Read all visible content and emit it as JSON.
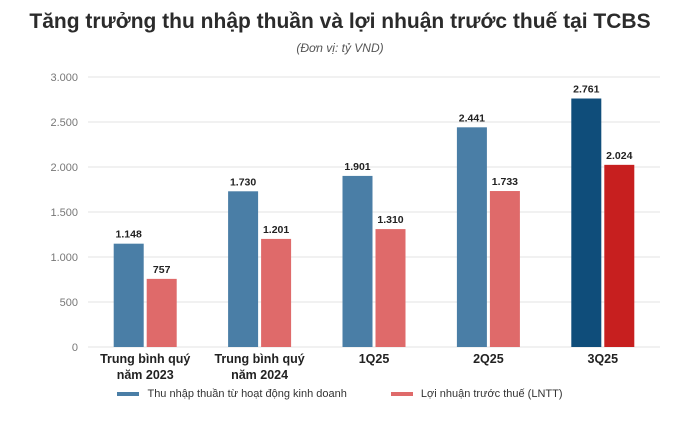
{
  "title": "Tăng trưởng thu nhập thuần và lợi nhuận trước thuế tại TCBS",
  "subtitle": "(Đơn vị: tỷ VND)",
  "colors": {
    "series1": "#4a7ea6",
    "series2": "#df6a6a",
    "series1_highlight": "#0f4d7a",
    "series2_highlight": "#c71f1f",
    "grid": "#e3e3e3",
    "axis_text": "#777777"
  },
  "chart_data": {
    "type": "bar",
    "categories": [
      [
        "Trung bình quý",
        "năm 2023"
      ],
      [
        "Trung bình quý",
        "năm 2024"
      ],
      [
        "1Q25"
      ],
      [
        "2Q25"
      ],
      [
        "3Q25"
      ]
    ],
    "series": [
      {
        "name": "Thu nhập thuần từ hoạt động kinh doanh",
        "values": [
          1148,
          1730,
          1901,
          2441,
          2761
        ],
        "labels": [
          "1.148",
          "1.730",
          "1.901",
          "2.441",
          "2.761"
        ]
      },
      {
        "name": "Lợi nhuận trước thuế (LNTT)",
        "values": [
          757,
          1201,
          1310,
          1733,
          2024
        ],
        "labels": [
          "757",
          "1.201",
          "1.310",
          "1.733",
          "2.024"
        ]
      }
    ],
    "highlight_category_index": 4,
    "ylim": [
      0,
      3000
    ],
    "yticks": [
      0,
      500,
      1000,
      1500,
      2000,
      2500,
      3000
    ],
    "ytick_labels": [
      "0",
      "500",
      "1.000",
      "1.500",
      "2.000",
      "2.500",
      "3.000"
    ],
    "grid": true,
    "legend_position": "bottom"
  }
}
